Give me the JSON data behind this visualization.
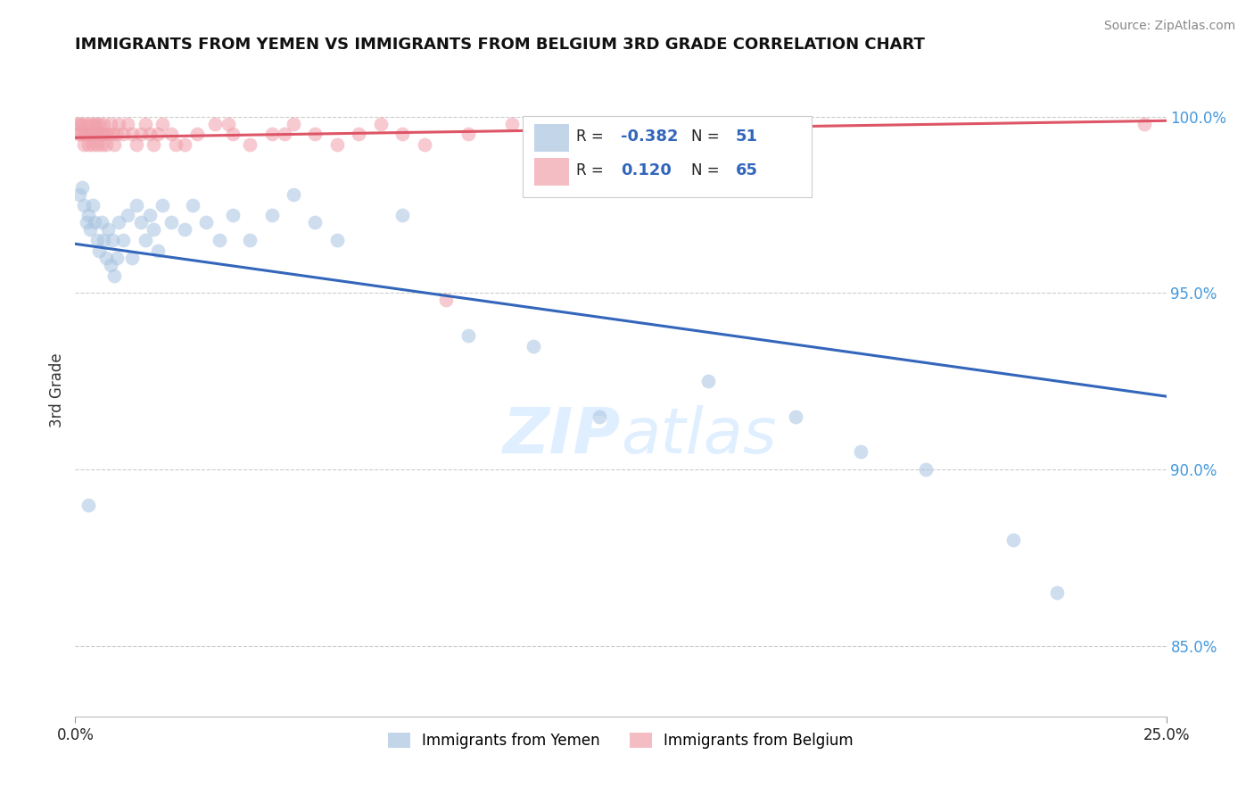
{
  "title": "IMMIGRANTS FROM YEMEN VS IMMIGRANTS FROM BELGIUM 3RD GRADE CORRELATION CHART",
  "source": "Source: ZipAtlas.com",
  "ylabel": "3rd Grade",
  "xlim": [
    0.0,
    25.0
  ],
  "ylim": [
    83.0,
    101.5
  ],
  "yticks": [
    85.0,
    90.0,
    95.0,
    100.0
  ],
  "ytick_labels": [
    "85.0%",
    "90.0%",
    "95.0%",
    "100.0%"
  ],
  "blue_R": -0.382,
  "blue_N": 51,
  "pink_R": 0.12,
  "pink_N": 65,
  "blue_color": "#A8C4E0",
  "pink_color": "#F0A0AA",
  "blue_line_color": "#3366BB",
  "pink_line_color": "#DD5566",
  "legend_label_blue": "Immigrants from Yemen",
  "legend_label_pink": "Immigrants from Belgium",
  "blue_x": [
    0.1,
    0.15,
    0.2,
    0.25,
    0.3,
    0.35,
    0.4,
    0.45,
    0.5,
    0.55,
    0.6,
    0.65,
    0.7,
    0.75,
    0.8,
    0.85,
    0.9,
    0.95,
    1.0,
    1.1,
    1.2,
    1.3,
    1.4,
    1.5,
    1.6,
    1.7,
    1.8,
    1.9,
    2.0,
    2.2,
    2.5,
    2.7,
    3.0,
    3.3,
    3.6,
    4.0,
    4.5,
    5.0,
    5.5,
    6.0,
    7.5,
    9.0,
    10.5,
    12.0,
    14.5,
    16.5,
    18.0,
    19.5,
    21.5,
    22.5,
    0.3
  ],
  "blue_y": [
    97.8,
    98.0,
    97.5,
    97.0,
    97.2,
    96.8,
    97.5,
    97.0,
    96.5,
    96.2,
    97.0,
    96.5,
    96.0,
    96.8,
    95.8,
    96.5,
    95.5,
    96.0,
    97.0,
    96.5,
    97.2,
    96.0,
    97.5,
    97.0,
    96.5,
    97.2,
    96.8,
    96.2,
    97.5,
    97.0,
    96.8,
    97.5,
    97.0,
    96.5,
    97.2,
    96.5,
    97.2,
    97.8,
    97.0,
    96.5,
    97.2,
    93.8,
    93.5,
    91.5,
    92.5,
    91.5,
    90.5,
    90.0,
    88.0,
    86.5,
    89.0
  ],
  "pink_x": [
    0.05,
    0.08,
    0.1,
    0.12,
    0.15,
    0.18,
    0.2,
    0.22,
    0.25,
    0.28,
    0.3,
    0.32,
    0.35,
    0.38,
    0.4,
    0.42,
    0.45,
    0.48,
    0.5,
    0.52,
    0.55,
    0.58,
    0.6,
    0.62,
    0.65,
    0.68,
    0.7,
    0.75,
    0.8,
    0.85,
    0.9,
    0.95,
    1.0,
    1.1,
    1.2,
    1.3,
    1.4,
    1.5,
    1.6,
    1.7,
    1.8,
    1.9,
    2.0,
    2.2,
    2.5,
    2.8,
    3.2,
    3.6,
    4.0,
    4.5,
    5.0,
    5.5,
    6.0,
    6.5,
    7.0,
    7.5,
    8.0,
    9.0,
    10.0,
    11.5,
    3.5,
    4.8,
    2.3,
    8.5,
    24.5
  ],
  "pink_y": [
    99.8,
    99.5,
    99.8,
    99.5,
    99.8,
    99.5,
    99.2,
    99.5,
    99.8,
    99.5,
    99.2,
    99.5,
    99.8,
    99.5,
    99.2,
    99.8,
    99.5,
    99.8,
    99.2,
    99.5,
    99.8,
    99.5,
    99.2,
    99.5,
    99.8,
    99.5,
    99.2,
    99.5,
    99.8,
    99.5,
    99.2,
    99.5,
    99.8,
    99.5,
    99.8,
    99.5,
    99.2,
    99.5,
    99.8,
    99.5,
    99.2,
    99.5,
    99.8,
    99.5,
    99.2,
    99.5,
    99.8,
    99.5,
    99.2,
    99.5,
    99.8,
    99.5,
    99.2,
    99.5,
    99.8,
    99.5,
    99.2,
    99.5,
    99.8,
    99.5,
    99.8,
    99.5,
    99.2,
    94.8,
    99.8
  ]
}
